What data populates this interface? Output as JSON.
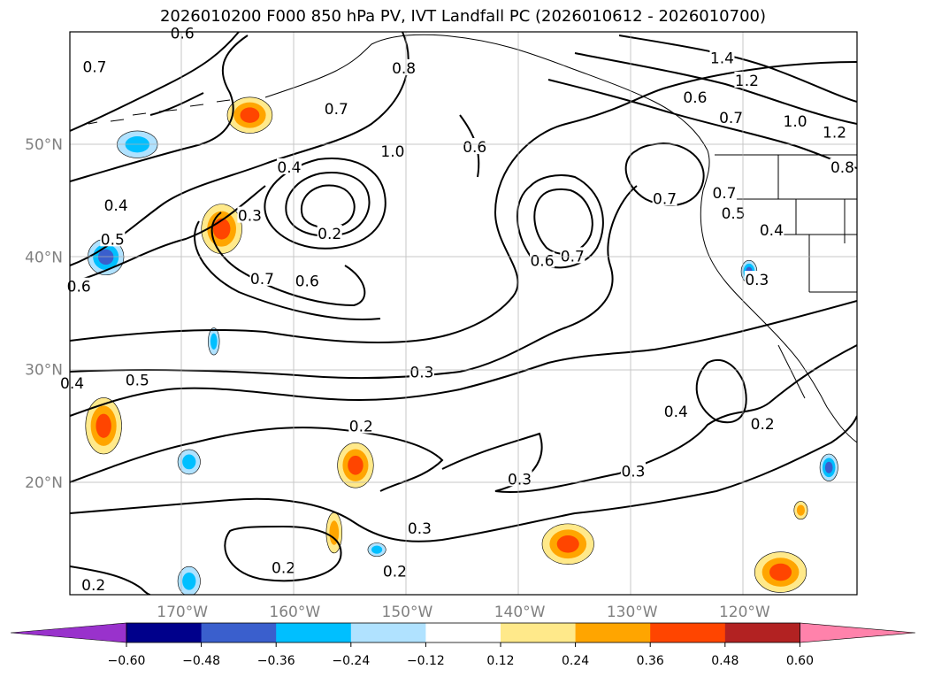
{
  "title": "2026010200 F000 850 hPa PV, IVT Landfall PC (2026010612 - 2026010700)",
  "chart_data": {
    "type": "contour-map",
    "title": "2026010200 F000 850 hPa PV, IVT Landfall PC (2026010612 - 2026010700)",
    "lon_range": [
      -180,
      -110
    ],
    "lat_range": [
      10,
      60
    ],
    "x_ticks": [
      {
        "lon": -170,
        "label": "170°W"
      },
      {
        "lon": -160,
        "label": "160°W"
      },
      {
        "lon": -150,
        "label": "150°W"
      },
      {
        "lon": -140,
        "label": "140°W"
      },
      {
        "lon": -130,
        "label": "130°W"
      },
      {
        "lon": -120,
        "label": "120°W"
      }
    ],
    "y_ticks": [
      {
        "lat": 20,
        "label": "20°N"
      },
      {
        "lat": 30,
        "label": "30°N"
      },
      {
        "lat": 40,
        "label": "40°N"
      },
      {
        "lat": 50,
        "label": "50°N"
      }
    ],
    "colorbar": {
      "levels": [
        -0.6,
        -0.48,
        -0.36,
        -0.24,
        -0.12,
        0.12,
        0.24,
        0.36,
        0.48,
        0.6
      ],
      "labels": [
        "−0.60",
        "−0.48",
        "−0.36",
        "−0.24",
        "−0.12",
        "0.12",
        "0.24",
        "0.36",
        "0.48",
        "0.60"
      ],
      "colors": [
        "#9932cc",
        "#00008b",
        "#3a5fcd",
        "#00bfff",
        "#b0e2ff",
        "#ffffff",
        "#ffe98a",
        "#ffa500",
        "#ff4500",
        "#b22222",
        "#ff82ab"
      ],
      "extend": "both"
    },
    "contour_labels": [
      {
        "text": "0.6",
        "lon": -170.0,
        "lat": 59.8
      },
      {
        "text": "0.7",
        "lon": -177.8,
        "lat": 56.8
      },
      {
        "text": "0.8",
        "lon": -150.3,
        "lat": 56.7
      },
      {
        "text": "0.7",
        "lon": -156.3,
        "lat": 53.1
      },
      {
        "text": "1.0",
        "lon": -151.3,
        "lat": 49.3
      },
      {
        "text": "0.6",
        "lon": -144.0,
        "lat": 49.7
      },
      {
        "text": "1.4",
        "lon": -122.0,
        "lat": 57.6
      },
      {
        "text": "1.2",
        "lon": -119.8,
        "lat": 55.6
      },
      {
        "text": "1.0",
        "lon": -115.5,
        "lat": 52.0
      },
      {
        "text": "1.2",
        "lon": -112.0,
        "lat": 51.0
      },
      {
        "text": "0.6",
        "lon": -124.4,
        "lat": 54.1
      },
      {
        "text": "0.7",
        "lon": -121.2,
        "lat": 52.3
      },
      {
        "text": "0.8",
        "lon": -111.3,
        "lat": 47.9
      },
      {
        "text": "0.4",
        "lon": -160.5,
        "lat": 47.9
      },
      {
        "text": "0.4",
        "lon": -175.9,
        "lat": 44.5
      },
      {
        "text": "0.3",
        "lon": -164.0,
        "lat": 43.6
      },
      {
        "text": "0.2",
        "lon": -156.9,
        "lat": 42.0
      },
      {
        "text": "0.5",
        "lon": -176.2,
        "lat": 41.5
      },
      {
        "text": "0.6",
        "lon": -179.2,
        "lat": 37.3
      },
      {
        "text": "0.7",
        "lon": -162.9,
        "lat": 38.0
      },
      {
        "text": "0.6",
        "lon": -158.9,
        "lat": 37.8
      },
      {
        "text": "0.7",
        "lon": -127.1,
        "lat": 45.1
      },
      {
        "text": "0.7",
        "lon": -121.8,
        "lat": 45.6
      },
      {
        "text": "0.5",
        "lon": -121.0,
        "lat": 43.8
      },
      {
        "text": "0.4",
        "lon": -117.6,
        "lat": 42.3
      },
      {
        "text": "0.6",
        "lon": -138.0,
        "lat": 39.6
      },
      {
        "text": "0.7",
        "lon": -135.3,
        "lat": 40.0
      },
      {
        "text": "0.3",
        "lon": -118.9,
        "lat": 37.9
      },
      {
        "text": "0.3",
        "lon": -148.7,
        "lat": 29.7
      },
      {
        "text": "0.5",
        "lon": -174.0,
        "lat": 29.0
      },
      {
        "text": "0.4",
        "lon": -179.8,
        "lat": 28.7
      },
      {
        "text": "0.4",
        "lon": -126.1,
        "lat": 26.2
      },
      {
        "text": "0.2",
        "lon": -118.4,
        "lat": 25.1
      },
      {
        "text": "0.2",
        "lon": -154.1,
        "lat": 24.9
      },
      {
        "text": "0.3",
        "lon": -140.0,
        "lat": 20.2
      },
      {
        "text": "0.3",
        "lon": -129.9,
        "lat": 20.9
      },
      {
        "text": "0.3",
        "lon": -148.9,
        "lat": 15.8
      },
      {
        "text": "0.2",
        "lon": -161.0,
        "lat": 12.3
      },
      {
        "text": "0.2",
        "lon": -151.1,
        "lat": 12.0
      },
      {
        "text": "0.2",
        "lon": -177.9,
        "lat": 10.8
      }
    ],
    "shaded_regions": [
      {
        "lon": -164.0,
        "lat": 52.6,
        "rx": 2.0,
        "ry": 1.6,
        "value": 0.42
      },
      {
        "lon": -166.5,
        "lat": 42.5,
        "rx": 1.8,
        "ry": 2.2,
        "value": 0.38
      },
      {
        "lon": -176.8,
        "lat": 40.0,
        "rx": 1.6,
        "ry": 1.6,
        "value": -0.45
      },
      {
        "lon": -174.0,
        "lat": 50.0,
        "rx": 1.8,
        "ry": 1.2,
        "value": -0.33
      },
      {
        "lon": -177.0,
        "lat": 25.0,
        "rx": 1.6,
        "ry": 2.5,
        "value": 0.38
      },
      {
        "lon": -167.2,
        "lat": 32.5,
        "rx": 0.5,
        "ry": 1.2,
        "value": -0.3
      },
      {
        "lon": -169.4,
        "lat": 21.8,
        "rx": 1.0,
        "ry": 1.1,
        "value": -0.3
      },
      {
        "lon": -154.6,
        "lat": 21.5,
        "rx": 1.6,
        "ry": 2.0,
        "value": 0.4
      },
      {
        "lon": -156.5,
        "lat": 15.5,
        "rx": 0.7,
        "ry": 1.8,
        "value": 0.32
      },
      {
        "lon": -152.7,
        "lat": 14.0,
        "rx": 0.8,
        "ry": 0.6,
        "value": -0.3
      },
      {
        "lon": -169.4,
        "lat": 11.2,
        "rx": 1.0,
        "ry": 1.3,
        "value": -0.3
      },
      {
        "lon": -135.7,
        "lat": 14.5,
        "rx": 2.3,
        "ry": 1.8,
        "value": 0.42
      },
      {
        "lon": -119.6,
        "lat": 38.7,
        "rx": 0.7,
        "ry": 1.0,
        "value": -0.4
      },
      {
        "lon": -112.5,
        "lat": 21.3,
        "rx": 0.8,
        "ry": 1.2,
        "value": -0.42
      },
      {
        "lon": -115.0,
        "lat": 17.5,
        "rx": 0.6,
        "ry": 0.8,
        "value": 0.3
      },
      {
        "lon": -116.8,
        "lat": 12.0,
        "rx": 2.3,
        "ry": 1.8,
        "value": 0.42
      }
    ]
  }
}
